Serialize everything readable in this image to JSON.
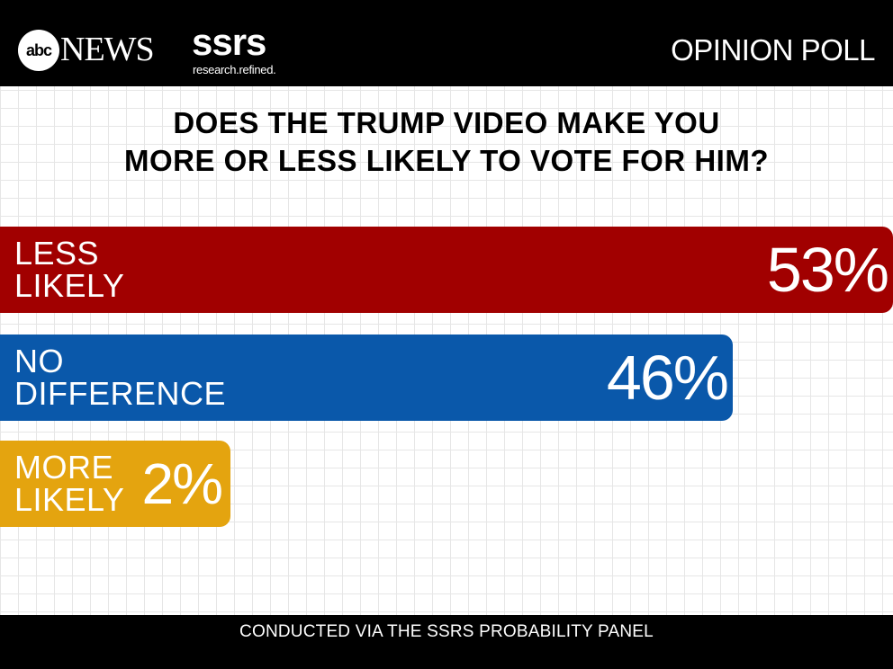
{
  "header": {
    "network_logo_mark": "abc",
    "network_logo_word": "NEWS",
    "partner_logo": "ssrs",
    "partner_tagline": "research.refined.",
    "badge": "OPINION POLL"
  },
  "footer": {
    "note": "CONDUCTED VIA THE SSRS PROBABILITY PANEL"
  },
  "colors": {
    "less_likely": "#a10000",
    "no_difference": "#0a58aa",
    "more_likely": "#e4a40f"
  },
  "chart_data": {
    "type": "bar",
    "title_lines": [
      "DOES THE TRUMP VIDEO MAKE YOU",
      "MORE OR LESS LIKELY TO VOTE FOR HIM?"
    ],
    "orientation": "horizontal",
    "categories": [
      {
        "label_lines": [
          "LESS",
          "LIKELY"
        ],
        "value": 53,
        "value_label": "53%",
        "color": "#a10000"
      },
      {
        "label_lines": [
          "NO",
          "DIFFERENCE"
        ],
        "value": 46,
        "value_label": "46%",
        "color": "#0a58aa"
      },
      {
        "label_lines": [
          "MORE",
          "LIKELY"
        ],
        "value": 2,
        "value_label": "2%",
        "color": "#e4a40f"
      }
    ],
    "xlim": [
      0,
      53
    ],
    "grid": true
  }
}
